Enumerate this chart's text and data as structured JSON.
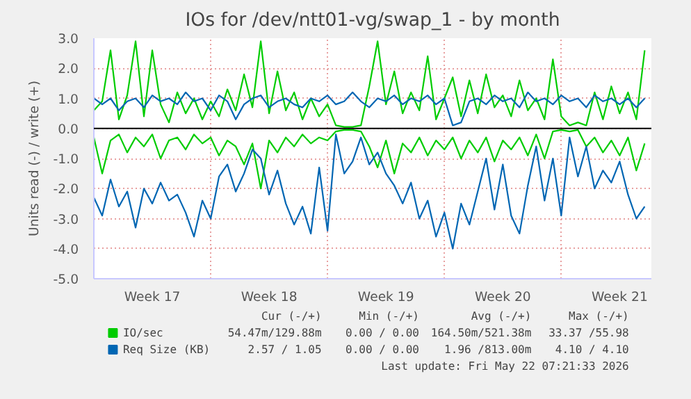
{
  "chart_data": {
    "type": "line",
    "title": "IOs for /dev/ntt01-vg/swap_1 - by month",
    "ylabel": "Units read (-) / write (+)",
    "categories": [
      null,
      null,
      null,
      null,
      null,
      null,
      null,
      "Week 17",
      null,
      null,
      null,
      null,
      null,
      null,
      null,
      null,
      null,
      null,
      null,
      null,
      null,
      "Week 18",
      null,
      null,
      null,
      null,
      null,
      null,
      null,
      null,
      null,
      null,
      null,
      null,
      null,
      "Week 19",
      null,
      null,
      null,
      null,
      null,
      null,
      null,
      null,
      null,
      null,
      null,
      null,
      null,
      "Week 20",
      null,
      null,
      null,
      null,
      null,
      null,
      null,
      null,
      null,
      null,
      null,
      null,
      null,
      "Week 21",
      null,
      null,
      null
    ],
    "series": [
      {
        "name": "IO/sec",
        "color": "#00cc00",
        "values": [
          0.6,
          0.9,
          2.6,
          0.3,
          1.1,
          2.9,
          0.4,
          2.6,
          0.8,
          0.2,
          1.2,
          0.5,
          1.0,
          0.3,
          0.9,
          0.4,
          1.3,
          0.6,
          1.8,
          0.7,
          2.9,
          0.5,
          1.9,
          0.6,
          1.2,
          0.3,
          1.0,
          0.4,
          0.8,
          0.1,
          0.05,
          0.05,
          0.1,
          1.4,
          2.9,
          0.8,
          1.9,
          0.5,
          1.2,
          0.6,
          2.4,
          0.3,
          1.0,
          1.7,
          0.4,
          1.6,
          0.5,
          1.8,
          0.7,
          1.1,
          0.4,
          1.6,
          0.6,
          1.0,
          0.3,
          2.3,
          0.4,
          0.1,
          0.2,
          0.1,
          1.2,
          0.3,
          1.4,
          0.5,
          1.2,
          0.3,
          2.6
        ]
      },
      {
        "color": "#00cc00",
        "values": [
          -0.3,
          -1.5,
          -0.4,
          -0.2,
          -0.8,
          -0.3,
          -0.6,
          -0.2,
          -1.0,
          -0.4,
          -0.3,
          -0.7,
          -0.2,
          -0.5,
          -0.3,
          -0.9,
          -0.4,
          -0.6,
          -1.2,
          -0.5,
          -2.0,
          -0.4,
          -0.8,
          -0.3,
          -0.6,
          -0.2,
          -0.5,
          -0.3,
          -0.4,
          -0.1,
          -0.05,
          -0.05,
          -0.1,
          -0.6,
          -1.3,
          -0.4,
          -1.5,
          -0.5,
          -0.8,
          -0.3,
          -0.9,
          -0.4,
          -0.7,
          -0.3,
          -1.0,
          -0.4,
          -0.8,
          -0.3,
          -1.1,
          -0.4,
          -0.7,
          -0.3,
          -0.9,
          -0.2,
          -1.0,
          -0.1,
          -0.05,
          -0.1,
          -0.05,
          -0.6,
          -0.3,
          -0.8,
          -0.4,
          -0.9,
          -0.3,
          -1.4,
          -0.5
        ]
      },
      {
        "name": "Req Size (KB)",
        "color": "#0066b3",
        "values": [
          1.0,
          0.8,
          1.0,
          0.6,
          0.9,
          1.0,
          0.7,
          1.1,
          0.9,
          1.0,
          0.8,
          1.2,
          0.9,
          1.0,
          0.6,
          1.1,
          0.9,
          0.3,
          0.8,
          1.0,
          1.1,
          0.7,
          0.9,
          1.0,
          0.8,
          0.7,
          1.0,
          0.9,
          1.1,
          0.8,
          0.9,
          1.2,
          0.9,
          0.7,
          1.0,
          0.9,
          1.1,
          0.8,
          1.0,
          0.9,
          1.1,
          0.8,
          1.0,
          0.1,
          0.2,
          0.9,
          1.0,
          0.8,
          1.1,
          0.9,
          1.0,
          0.7,
          1.2,
          0.9,
          1.0,
          0.8,
          1.1,
          0.9,
          1.0,
          0.7,
          1.1,
          0.9,
          1.0,
          0.8,
          1.0,
          0.7,
          1.0
        ]
      },
      {
        "color": "#0066b3",
        "values": [
          -2.3,
          -2.9,
          -1.7,
          -2.6,
          -2.1,
          -3.3,
          -2.0,
          -2.5,
          -1.8,
          -2.4,
          -2.2,
          -2.8,
          -3.6,
          -2.4,
          -3.0,
          -1.6,
          -1.2,
          -2.1,
          -1.5,
          -0.7,
          -1.0,
          -2.2,
          -1.4,
          -2.5,
          -3.2,
          -2.6,
          -3.5,
          -1.3,
          -3.4,
          -0.2,
          -1.5,
          -1.1,
          -0.3,
          -1.2,
          -0.8,
          -1.5,
          -1.9,
          -2.5,
          -1.8,
          -3.0,
          -2.4,
          -3.6,
          -2.8,
          -4.0,
          -2.5,
          -3.2,
          -2.1,
          -1.0,
          -2.7,
          -1.2,
          -2.9,
          -3.5,
          -1.9,
          -0.6,
          -2.4,
          -1.0,
          -2.9,
          -0.3,
          -1.6,
          -0.6,
          -2.0,
          -1.4,
          -1.8,
          -1.1,
          -2.2,
          -3.0,
          -2.6
        ]
      }
    ],
    "ylim": [
      -5,
      3
    ],
    "yticks": [
      {
        "value": -5,
        "label": "-5.0"
      },
      {
        "value": -4,
        "label": "-4.0"
      },
      {
        "value": -3,
        "label": "-3.0"
      },
      {
        "value": -2,
        "label": "-2.0"
      },
      {
        "value": -1,
        "label": "-1.0"
      },
      {
        "value": 0,
        "label": "0.0"
      },
      {
        "value": 1,
        "label": "1.0"
      },
      {
        "value": 2,
        "label": "2.0"
      },
      {
        "value": 3,
        "label": "3.0"
      }
    ],
    "ref_lines": [
      {
        "axis": "y",
        "value": 0,
        "color": "#000000"
      }
    ],
    "grid": true,
    "legend": "bottom",
    "line_style": "solid",
    "marker": "none",
    "annotations": [
      "Cur (-/+)",
      "Min (-/+)",
      "Avg (-/+)",
      "Max (-/+)",
      "54.47m/129.88m",
      "0.00 / 0.00",
      "164.50m/521.38m",
      "33.37 /55.98",
      "2.57 / 1.05",
      "0.00 / 0.00",
      "1.96 /813.00m",
      "4.10 / 4.10",
      "Last update: Fri May 22 07:21:33 2026"
    ]
  }
}
